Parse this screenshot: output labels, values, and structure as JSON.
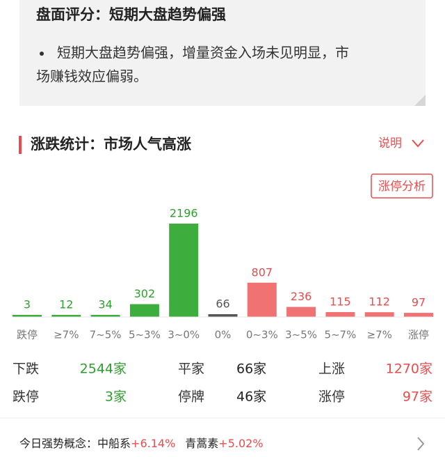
{
  "summary": {
    "title": "盘面评分：短期大盘趋势偏强",
    "bullet": [
      "短期大盘趋势偏强，增量资金入场未见明显，市",
      "场赚钱效应偏弱。"
    ]
  },
  "section": {
    "title": "涨跌统计：市场人气高涨",
    "help": "说明",
    "button": "涨停分析"
  },
  "chart_data": {
    "type": "bar",
    "categories": [
      "跌停",
      "≥7%",
      "7~5%",
      "5~3%",
      "3~0%",
      "0%",
      "0~3%",
      "3~5%",
      "5~7%",
      "≥7%",
      "涨停"
    ],
    "values": [
      3,
      12,
      34,
      302,
      2196,
      66,
      807,
      236,
      115,
      112,
      97
    ],
    "colors": [
      "#3dad3d",
      "#3dad3d",
      "#3dad3d",
      "#3dad3d",
      "#3dad3d",
      "#555555",
      "#f07272",
      "#f07272",
      "#f07272",
      "#f07272",
      "#f07272"
    ],
    "label_colors": [
      "#2e9e2e",
      "#2e9e2e",
      "#2e9e2e",
      "#2e9e2e",
      "#2e9e2e",
      "#555555",
      "#e84c4c",
      "#e84c4c",
      "#e84c4c",
      "#e84c4c",
      "#e84c4c"
    ]
  },
  "stats": {
    "rows": [
      [
        {
          "label": "下跌",
          "value": "2544家"
        },
        {
          "label": "平家",
          "value": "66家"
        },
        {
          "label": "上涨",
          "value": "1270家"
        }
      ],
      [
        {
          "label": "跌停",
          "value": "3家"
        },
        {
          "label": "停牌",
          "value": "46家"
        },
        {
          "label": "涨停",
          "value": "97家"
        }
      ]
    ]
  },
  "concepts": {
    "label": "今日强势概念：",
    "items": [
      {
        "name": "中船系",
        "change": "+6.14%"
      },
      {
        "name": "青蒿素",
        "change": "+5.02%"
      }
    ]
  }
}
